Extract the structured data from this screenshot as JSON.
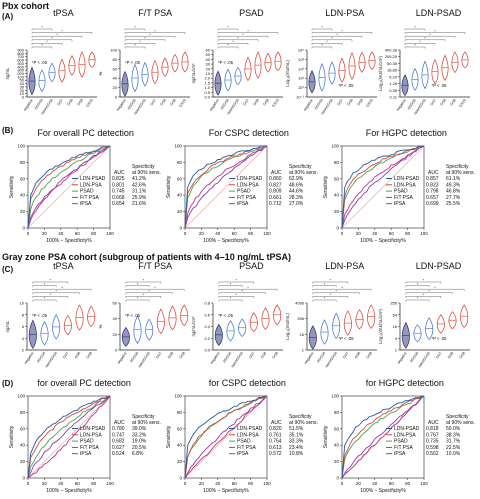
{
  "sections": {
    "pbx": "Pbx cohort",
    "grayzone": "Gray zone PSA cohort (subgroup of patients with 4–10 ng/mL tPSA)"
  },
  "panel_labels": {
    "A": "(A)",
    "B": "(B)",
    "C": "(C)",
    "D": "(D)"
  },
  "colors": {
    "ldn_psad": "#1f5aa6",
    "ldn_psa": "#d6483b",
    "psad": "#49a54a",
    "ftpsa": "#8e3bb0",
    "tpsa": "#c62f86",
    "ref": "#f4a9a0",
    "navy": "#2a2f6b",
    "red": "#d93a2b"
  },
  "violin_categories_A": [
    "negative",
    "ASGS6",
    "nonASGS6",
    "GS7",
    "GS8",
    "GS9",
    "GS10"
  ],
  "violin_categories_C": [
    "negative",
    "ASGS6",
    "nonASGS6",
    "GS7",
    "GS8",
    "GS9"
  ],
  "pvalue_note": "*P < .05",
  "panelA": [
    {
      "title": "tPSA",
      "ylabel": "ng/mL",
      "yticks": [
        "900",
        "800",
        "700",
        "600",
        "500",
        "400",
        "300",
        "200",
        "100",
        "50",
        "40",
        "30",
        "20",
        "10",
        "0"
      ]
    },
    {
      "title": "F/T PSA",
      "ylabel": "%",
      "yticks": [
        "100",
        "80",
        "60",
        "40",
        "20",
        "0"
      ]
    },
    {
      "title": "PSAD",
      "ylabel": "ng/mL/cm³",
      "yticks": [
        "60",
        "50",
        "40",
        "30",
        "20",
        "10",
        "2.0",
        "1.5",
        "1.0",
        "0.5",
        "0.0"
      ]
    },
    {
      "title": "LDN-PSA",
      "ylabel": "Log₁₀(mU/mL)",
      "yticks": [
        "10⁴",
        "10³",
        "10²",
        "10¹",
        "10⁰",
        "10⁻¹"
      ]
    },
    {
      "title": "LDN-PSAD",
      "ylabel": "Log₁₀(mU/mL/cm³)",
      "yticks": [
        "400.36",
        "205.25",
        "50.35",
        "18.80",
        "5.20",
        "1.28",
        "0.38",
        "0.11"
      ]
    }
  ],
  "panelC": [
    {
      "title": "tPSA",
      "ylabel": "ng/mL",
      "yticks": [
        "10",
        "8",
        "6",
        "4",
        "2"
      ]
    },
    {
      "title": "F/T PSA",
      "ylabel": "%",
      "yticks": [
        "60",
        "40",
        "20",
        "0"
      ]
    },
    {
      "title": "PSAD",
      "ylabel": "ng/mL/cm³",
      "yticks": [
        "0.8",
        "0.6",
        "0.4",
        "0.2",
        "0.0"
      ]
    },
    {
      "title": "LDN-PSA",
      "ylabel": "Log₁₀(mU/mL)",
      "yticks": [
        "4096",
        "256",
        "16",
        "1"
      ]
    },
    {
      "title": "LDN-PSAD",
      "ylabel": "Log₁₀(mU/mL/cm³)",
      "yticks": [
        "256",
        "64",
        "16",
        "4",
        "1"
      ]
    }
  ],
  "roc_common": {
    "xlabel": "100% − Specificity%",
    "ylabel": "Sensitivity",
    "ticks": [
      "0",
      "20",
      "40",
      "60",
      "80",
      "100"
    ],
    "auc_header": "AUC",
    "spec_header": "Specificity at 90% sens."
  },
  "panelB": [
    {
      "title": "For overall PC detection",
      "rows": [
        {
          "name": "LDN-PSAD",
          "auc": "0.825",
          "spec": "41.2%"
        },
        {
          "name": "LDN-PSA",
          "auc": "0.801",
          "spec": "42.6%"
        },
        {
          "name": "PSAD",
          "auc": "0.745",
          "spec": "31.1%"
        },
        {
          "name": "F/T PSA",
          "auc": "0.668",
          "spec": "25.9%"
        },
        {
          "name": "tPSA",
          "auc": "0.654",
          "spec": "21.6%"
        }
      ]
    },
    {
      "title": "For CSPC detection",
      "rows": [
        {
          "name": "LDN-PSAD",
          "auc": "0.860",
          "spec": "62.9%"
        },
        {
          "name": "LDN-PSA",
          "auc": "0.827",
          "spec": "48.6%"
        },
        {
          "name": "PSAD",
          "auc": "0.809",
          "spec": "44.6%"
        },
        {
          "name": "F/T PSA",
          "auc": "0.661",
          "spec": "28.3%"
        },
        {
          "name": "tPSA",
          "auc": "0.712",
          "spec": "27.0%"
        }
      ]
    },
    {
      "title": "For HGPC detection",
      "rows": [
        {
          "name": "LDN-PSAD",
          "auc": "0.857",
          "spec": "61.1%"
        },
        {
          "name": "LDN-PSA",
          "auc": "0.823",
          "spec": "49.3%"
        },
        {
          "name": "PSAD",
          "auc": "0.798",
          "spec": "46.8%"
        },
        {
          "name": "F/T PSA",
          "auc": "0.657",
          "spec": "27.7%"
        },
        {
          "name": "tPSA",
          "auc": "0.699",
          "spec": "25.5%"
        }
      ]
    }
  ],
  "panelD": [
    {
      "title": "for overall PC detection",
      "rows": [
        {
          "name": "LDN-PSAD",
          "auc": "0.780",
          "spec": "39.0%"
        },
        {
          "name": "LDN-PSA",
          "auc": "0.747",
          "spec": "33.2%"
        },
        {
          "name": "PSAD",
          "auc": "0.682",
          "spec": "19.0%"
        },
        {
          "name": "F/T PSA",
          "auc": "0.627",
          "spec": "20.5%"
        },
        {
          "name": "tPSA",
          "auc": "0.524",
          "spec": "6.8%"
        }
      ]
    },
    {
      "title": "for CSPC detection",
      "rows": [
        {
          "name": "LDN-PSAD",
          "auc": "0.820",
          "spec": "51.5%"
        },
        {
          "name": "LDN-PSA",
          "auc": "0.761",
          "spec": "35.1%"
        },
        {
          "name": "PSAD",
          "auc": "0.754",
          "spec": "33.3%"
        },
        {
          "name": "F/T PSA",
          "auc": "0.613",
          "spec": "23.4%"
        },
        {
          "name": "tPSA",
          "auc": "0.572",
          "spec": "10.8%"
        }
      ]
    },
    {
      "title": "for HGPC detection",
      "rows": [
        {
          "name": "LDN-PSAD",
          "auc": "0.818",
          "spec": "50.0%"
        },
        {
          "name": "LDN-PSA",
          "auc": "0.767",
          "spec": "38.3%"
        },
        {
          "name": "PSAD",
          "auc": "0.735",
          "spec": "31.7%"
        },
        {
          "name": "F/T PSA",
          "auc": "0.598",
          "spec": "22.5%"
        },
        {
          "name": "tPSA",
          "auc": "0.562",
          "spec": "10.0%"
        }
      ]
    }
  ],
  "chart_data": [
    {
      "type": "line",
      "title": "For overall PC detection",
      "xlabel": "100% − Specificity%",
      "ylabel": "Sensitivity",
      "ylim": [
        0,
        100
      ],
      "series": [
        {
          "name": "LDN-PSAD",
          "auc": 0.825
        },
        {
          "name": "LDN-PSA",
          "auc": 0.801
        },
        {
          "name": "PSAD",
          "auc": 0.745
        },
        {
          "name": "F/T PSA",
          "auc": 0.668
        },
        {
          "name": "tPSA",
          "auc": 0.654
        }
      ]
    },
    {
      "type": "line",
      "title": "For CSPC detection",
      "series": [
        {
          "name": "LDN-PSAD",
          "auc": 0.86
        },
        {
          "name": "LDN-PSA",
          "auc": 0.827
        },
        {
          "name": "PSAD",
          "auc": 0.809
        },
        {
          "name": "F/T PSA",
          "auc": 0.661
        },
        {
          "name": "tPSA",
          "auc": 0.712
        }
      ]
    },
    {
      "type": "line",
      "title": "For HGPC detection",
      "series": [
        {
          "name": "LDN-PSAD",
          "auc": 0.857
        },
        {
          "name": "LDN-PSA",
          "auc": 0.823
        },
        {
          "name": "PSAD",
          "auc": 0.798
        },
        {
          "name": "F/T PSA",
          "auc": 0.657
        },
        {
          "name": "tPSA",
          "auc": 0.699
        }
      ]
    },
    {
      "type": "line",
      "title": "for overall PC detection",
      "series": [
        {
          "name": "LDN-PSAD",
          "auc": 0.78
        },
        {
          "name": "LDN-PSA",
          "auc": 0.747
        },
        {
          "name": "PSAD",
          "auc": 0.682
        },
        {
          "name": "F/T PSA",
          "auc": 0.627
        },
        {
          "name": "tPSA",
          "auc": 0.524
        }
      ]
    },
    {
      "type": "line",
      "title": "for CSPC detection",
      "series": [
        {
          "name": "LDN-PSAD",
          "auc": 0.82
        },
        {
          "name": "LDN-PSA",
          "auc": 0.761
        },
        {
          "name": "PSAD",
          "auc": 0.754
        },
        {
          "name": "F/T PSA",
          "auc": 0.613
        },
        {
          "name": "tPSA",
          "auc": 0.572
        }
      ]
    },
    {
      "type": "line",
      "title": "for HGPC detection",
      "series": [
        {
          "name": "LDN-PSAD",
          "auc": 0.818
        },
        {
          "name": "LDN-PSA",
          "auc": 0.767
        },
        {
          "name": "PSAD",
          "auc": 0.735
        },
        {
          "name": "F/T PSA",
          "auc": 0.598
        },
        {
          "name": "tPSA",
          "auc": 0.562
        }
      ]
    }
  ]
}
